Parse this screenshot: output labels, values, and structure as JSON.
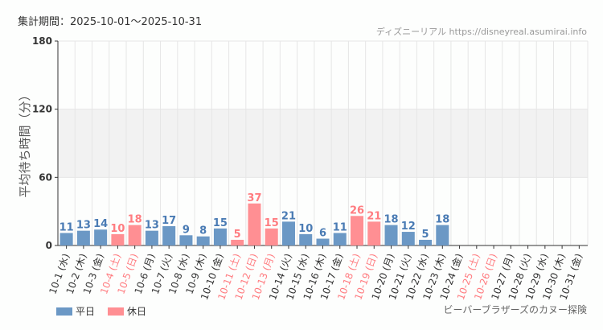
{
  "header": {
    "period": "集計期間：2025-10-01～2025-10-31",
    "credit": "ディズニーリアル https://disneyreal.asumirai.info"
  },
  "footer": {
    "attraction": "ビーバーブラザーズのカヌー探険"
  },
  "colors": {
    "weekday": "#6b98c5",
    "holiday": "#ff8f93",
    "weekday_text": "#4a7bb4",
    "holiday_text": "#ff7c80",
    "band": "#f2f2f2"
  },
  "chart_data": {
    "type": "bar",
    "ylabel": "平均待ち時間（分）",
    "ylim": [
      0,
      180
    ],
    "yticks": [
      "0",
      "60",
      "120",
      "180"
    ],
    "grid": true,
    "legend_position": "bottom-left",
    "series": [
      {
        "name": "平日"
      },
      {
        "name": "休日"
      }
    ],
    "categories": [
      "10-1 (水)",
      "10-2 (木)",
      "10-3 (金)",
      "10-4 (土)",
      "10-5 (日)",
      "10-6 (月)",
      "10-7 (火)",
      "10-8 (水)",
      "10-9 (木)",
      "10-10 (金)",
      "10-11 (土)",
      "10-12 (日)",
      "10-13 (月)",
      "10-14 (火)",
      "10-15 (水)",
      "10-16 (木)",
      "10-17 (金)",
      "10-18 (土)",
      "10-19 (日)",
      "10-20 (月)",
      "10-21 (火)",
      "10-22 (水)",
      "10-23 (木)",
      "10-24 (金)",
      "10-25 (土)",
      "10-26 (日)",
      "10-27 (月)",
      "10-28 (火)",
      "10-29 (水)",
      "10-30 (木)",
      "10-31 (金)"
    ],
    "values": [
      11,
      13,
      14,
      10,
      18,
      13,
      17,
      9,
      8,
      15,
      5,
      37,
      15,
      21,
      10,
      6,
      11,
      26,
      21,
      18,
      12,
      5,
      18,
      null,
      null,
      null,
      null,
      null,
      null,
      null,
      null
    ],
    "holiday": [
      false,
      false,
      false,
      true,
      true,
      false,
      false,
      false,
      false,
      false,
      true,
      true,
      true,
      false,
      false,
      false,
      false,
      true,
      true,
      false,
      false,
      false,
      false,
      false,
      true,
      true,
      false,
      false,
      false,
      false,
      false
    ]
  }
}
